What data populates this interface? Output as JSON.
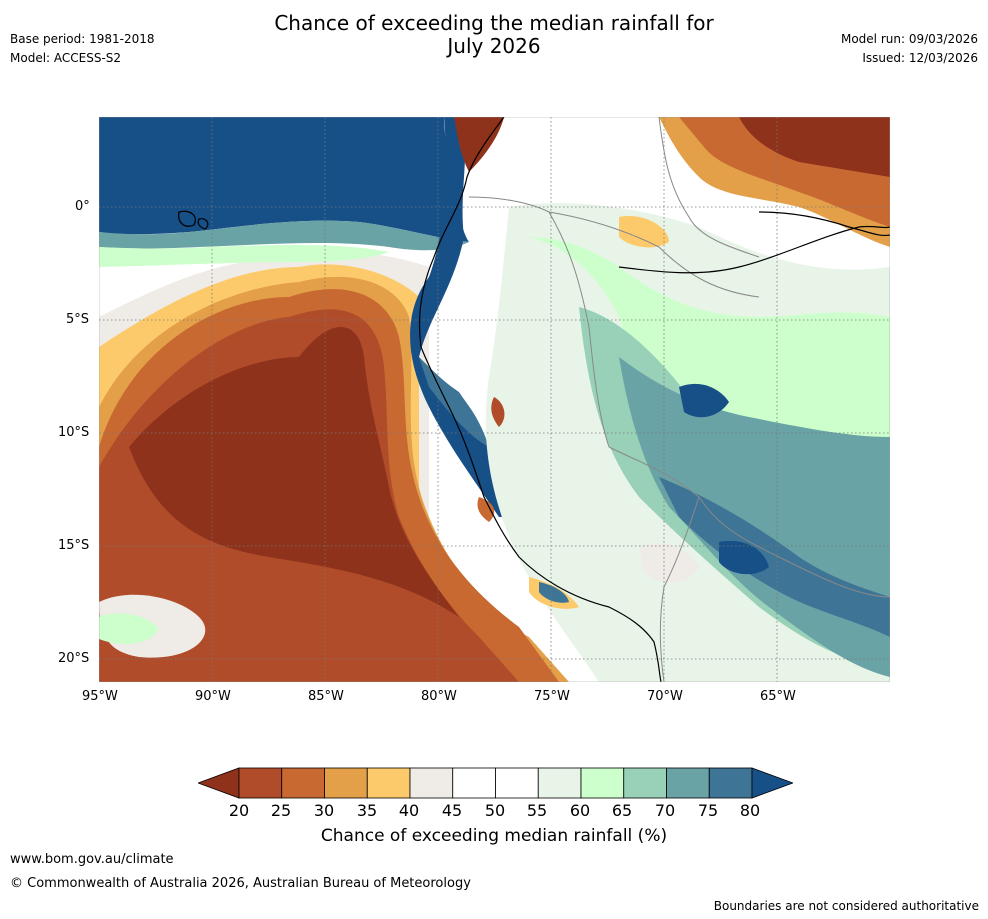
{
  "header": {
    "title_line1": "Chance of exceeding the median rainfall for",
    "title_line2": "July 2026",
    "base_period": "Base period: 1981-2018",
    "model": "Model: ACCESS-S2",
    "model_run": "Model run: 09/03/2026",
    "issued": "Issued: 12/03/2026"
  },
  "map": {
    "lon_ticks": [
      "95°W",
      "90°W",
      "85°W",
      "80°W",
      "75°W",
      "70°W",
      "65°W"
    ],
    "lat_ticks": [
      "0°",
      "5°S",
      "10°S",
      "15°S",
      "20°S"
    ]
  },
  "legend": {
    "title": "Chance of exceeding median rainfall (%)",
    "ticks": [
      "20",
      "25",
      "30",
      "35",
      "40",
      "45",
      "50",
      "55",
      "60",
      "65",
      "70",
      "75",
      "80"
    ],
    "colors": [
      "#8f321c",
      "#b04c2a",
      "#c86932",
      "#e3a049",
      "#fdca6b",
      "#efebe6",
      "#ffffff",
      "#ffffff",
      "#e8f4e8",
      "#ccffcc",
      "#99d1b8",
      "#6aa3a6",
      "#3e7596",
      "#174f87"
    ]
  },
  "footer": {
    "url": "www.bom.gov.au/climate",
    "copyright": "© Commonwealth of Australia 2026, Australian Bureau of Meteorology",
    "disclaimer": "Boundaries are not considered authoritative"
  }
}
